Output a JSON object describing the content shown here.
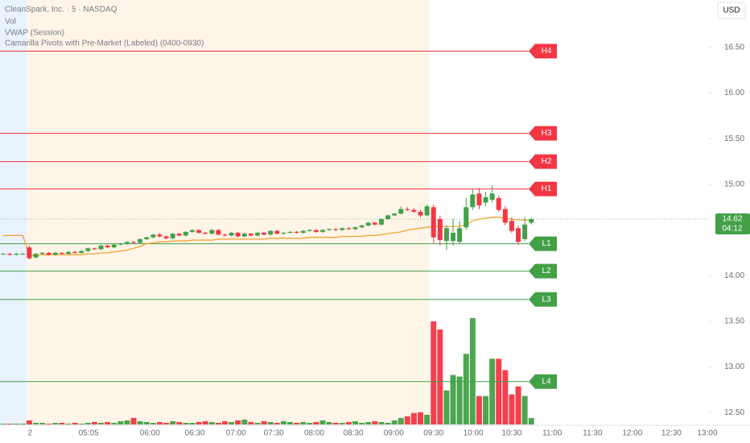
{
  "chart_data": {
    "type": "candlestick",
    "title": "CleanSpark, Inc. · 5 · NASDAQ",
    "legend": [
      "Vol",
      "VWAP (Session)",
      "Camarilla Pivots with Pre-Market (Labeled) (0400-0930)"
    ],
    "currency": "USD",
    "up_color": "#43a047",
    "down_color": "#f23645",
    "xlim": [
      0,
      108
    ],
    "xticks": [
      {
        "value": 4.1,
        "label": "2"
      },
      {
        "value": 13.1,
        "label": "05:05"
      },
      {
        "value": 22.5,
        "label": "06:00"
      },
      {
        "value": 29.4,
        "label": "06:30"
      },
      {
        "value": 35.7,
        "label": "07:00"
      },
      {
        "value": 41.5,
        "label": "07:30"
      },
      {
        "value": 47.7,
        "label": "08:00"
      },
      {
        "value": 53.7,
        "label": "08:30"
      },
      {
        "value": 59.9,
        "label": "09:00"
      },
      {
        "value": 66,
        "label": "09:30"
      },
      {
        "value": 72.1,
        "label": "10:00"
      },
      {
        "value": 78,
        "label": "10:30"
      },
      {
        "value": 84.2,
        "label": "11:00"
      },
      {
        "value": 90.4,
        "label": "11:30"
      },
      {
        "value": 96.5,
        "label": "12:00"
      },
      {
        "value": 102.5,
        "label": "12:30"
      },
      {
        "value": 108,
        "label": "13:00"
      }
    ],
    "ylim": [
      12.37,
      17.02
    ],
    "yticks": [
      {
        "value": 16.5,
        "label": "16.50"
      },
      {
        "value": 16,
        "label": "16.00"
      },
      {
        "value": 15.5,
        "label": "15.50"
      },
      {
        "value": 15,
        "label": "15.00"
      },
      {
        "value": 14,
        "label": "14.00"
      },
      {
        "value": 13.5,
        "label": "13.50"
      },
      {
        "value": 13,
        "label": "13.00"
      },
      {
        "value": 12.5,
        "label": "12.50"
      }
    ],
    "x": [
      0,
      1,
      2,
      3,
      4,
      5,
      6,
      7,
      8,
      9,
      10,
      11,
      12,
      13,
      14,
      15,
      16,
      17,
      18,
      19,
      20,
      21,
      22,
      23,
      24,
      25,
      26,
      27,
      28,
      29,
      30,
      31,
      32,
      33,
      34,
      35,
      36,
      37,
      38,
      39,
      40,
      41,
      42,
      43,
      44,
      45,
      46,
      47,
      48,
      49,
      50,
      51,
      52,
      53,
      54,
      55,
      56,
      57,
      58,
      59,
      60,
      61,
      62,
      63,
      64,
      65,
      66,
      67,
      68,
      69,
      70,
      71,
      72,
      73,
      74,
      75,
      76,
      77,
      78,
      79,
      80,
      81
    ],
    "candles": [
      [
        14.24,
        14.25,
        14.23,
        14.24
      ],
      [
        14.24,
        14.25,
        14.22,
        14.23
      ],
      [
        14.23,
        14.25,
        14.22,
        14.24
      ],
      [
        14.24,
        14.25,
        14.23,
        14.24
      ],
      [
        14.31,
        14.33,
        14.18,
        14.19
      ],
      [
        14.2,
        14.25,
        14.19,
        14.24
      ],
      [
        14.24,
        14.26,
        14.23,
        14.25
      ],
      [
        14.25,
        14.26,
        14.22,
        14.23
      ],
      [
        14.23,
        14.26,
        14.22,
        14.25
      ],
      [
        14.25,
        14.26,
        14.23,
        14.24
      ],
      [
        14.24,
        14.27,
        14.23,
        14.26
      ],
      [
        14.26,
        14.27,
        14.24,
        14.25
      ],
      [
        14.25,
        14.28,
        14.24,
        14.27
      ],
      [
        14.27,
        14.31,
        14.26,
        14.3
      ],
      [
        14.3,
        14.31,
        14.28,
        14.29
      ],
      [
        14.29,
        14.34,
        14.28,
        14.33
      ],
      [
        14.33,
        14.34,
        14.3,
        14.31
      ],
      [
        14.31,
        14.35,
        14.3,
        14.34
      ],
      [
        14.34,
        14.36,
        14.33,
        14.35
      ],
      [
        14.35,
        14.38,
        14.34,
        14.37
      ],
      [
        14.37,
        14.38,
        14.35,
        14.36
      ],
      [
        14.36,
        14.41,
        14.35,
        14.4
      ],
      [
        14.4,
        14.43,
        14.39,
        14.42
      ],
      [
        14.42,
        14.46,
        14.41,
        14.45
      ],
      [
        14.45,
        14.47,
        14.42,
        14.43
      ],
      [
        14.43,
        14.44,
        14.4,
        14.41
      ],
      [
        14.41,
        14.47,
        14.4,
        14.46
      ],
      [
        14.46,
        14.47,
        14.43,
        14.44
      ],
      [
        14.44,
        14.49,
        14.43,
        14.48
      ],
      [
        14.48,
        14.51,
        14.47,
        14.5
      ],
      [
        14.5,
        14.51,
        14.46,
        14.47
      ],
      [
        14.47,
        14.48,
        14.45,
        14.46
      ],
      [
        14.46,
        14.51,
        14.45,
        14.5
      ],
      [
        14.5,
        14.51,
        14.44,
        14.45
      ],
      [
        14.45,
        14.46,
        14.43,
        14.44
      ],
      [
        14.44,
        14.48,
        14.43,
        14.47
      ],
      [
        14.47,
        14.48,
        14.42,
        14.43
      ],
      [
        14.43,
        14.47,
        14.42,
        14.46
      ],
      [
        14.46,
        14.47,
        14.43,
        14.44
      ],
      [
        14.44,
        14.48,
        14.43,
        14.47
      ],
      [
        14.47,
        14.48,
        14.44,
        14.45
      ],
      [
        14.45,
        14.5,
        14.44,
        14.49
      ],
      [
        14.49,
        14.5,
        14.45,
        14.46
      ],
      [
        14.46,
        14.48,
        14.45,
        14.47
      ],
      [
        14.47,
        14.49,
        14.46,
        14.48
      ],
      [
        14.48,
        14.49,
        14.46,
        14.47
      ],
      [
        14.47,
        14.5,
        14.46,
        14.49
      ],
      [
        14.49,
        14.51,
        14.48,
        14.5
      ],
      [
        14.5,
        14.51,
        14.47,
        14.48
      ],
      [
        14.48,
        14.51,
        14.47,
        14.5
      ],
      [
        14.5,
        14.52,
        14.49,
        14.51
      ],
      [
        14.51,
        14.52,
        14.49,
        14.5
      ],
      [
        14.5,
        14.53,
        14.49,
        14.52
      ],
      [
        14.52,
        14.53,
        14.5,
        14.51
      ],
      [
        14.51,
        14.54,
        14.5,
        14.53
      ],
      [
        14.53,
        14.56,
        14.52,
        14.55
      ],
      [
        14.55,
        14.59,
        14.54,
        14.58
      ],
      [
        14.58,
        14.59,
        14.55,
        14.56
      ],
      [
        14.56,
        14.63,
        14.55,
        14.62
      ],
      [
        14.62,
        14.67,
        14.61,
        14.66
      ],
      [
        14.66,
        14.69,
        14.65,
        14.68
      ],
      [
        14.68,
        14.76,
        14.67,
        14.73
      ],
      [
        14.73,
        14.75,
        14.71,
        14.72
      ],
      [
        14.72,
        14.74,
        14.69,
        14.7
      ],
      [
        14.7,
        14.72,
        14.64,
        14.66
      ],
      [
        14.66,
        14.78,
        14.65,
        14.76
      ],
      [
        14.75,
        14.78,
        14.36,
        14.42
      ],
      [
        14.62,
        14.66,
        14.33,
        14.39
      ],
      [
        14.38,
        14.55,
        14.28,
        14.52
      ],
      [
        14.38,
        14.62,
        14.33,
        14.47
      ],
      [
        14.37,
        14.6,
        14.35,
        14.52
      ],
      [
        14.53,
        14.85,
        14.5,
        14.75
      ],
      [
        14.75,
        14.95,
        14.72,
        14.89
      ],
      [
        14.9,
        14.96,
        14.73,
        14.77
      ],
      [
        14.8,
        14.92,
        14.76,
        14.86
      ],
      [
        14.83,
        14.99,
        14.8,
        14.9
      ],
      [
        14.85,
        14.88,
        14.7,
        14.72
      ],
      [
        14.73,
        14.76,
        14.55,
        14.58
      ],
      [
        14.6,
        14.64,
        14.47,
        14.49
      ],
      [
        14.52,
        14.55,
        14.34,
        14.37
      ],
      [
        14.4,
        14.64,
        14.38,
        14.56
      ],
      [
        14.58,
        14.64,
        14.56,
        14.62
      ]
    ],
    "vwap": {
      "name": "VWAP (Session)",
      "color": "#f5a030",
      "values": [
        14.44,
        14.44,
        14.44,
        14.44,
        14.22,
        14.22,
        14.23,
        14.23,
        14.23,
        14.23,
        14.23,
        14.23,
        14.23,
        14.24,
        14.24,
        14.25,
        14.25,
        14.26,
        14.27,
        14.28,
        14.3,
        14.32,
        14.35,
        14.36,
        14.37,
        14.37,
        14.38,
        14.38,
        14.38,
        14.39,
        14.39,
        14.39,
        14.39,
        14.4,
        14.4,
        14.4,
        14.4,
        14.4,
        14.4,
        14.4,
        14.4,
        14.41,
        14.41,
        14.41,
        14.41,
        14.41,
        14.41,
        14.42,
        14.42,
        14.42,
        14.42,
        14.42,
        14.43,
        14.43,
        14.43,
        14.43,
        14.44,
        14.44,
        14.45,
        14.46,
        14.47,
        14.48,
        14.5,
        14.51,
        14.52,
        14.53,
        14.54,
        14.54,
        14.54,
        14.54,
        14.54,
        14.56,
        14.6,
        14.62,
        14.63,
        14.64,
        14.64,
        14.63,
        14.62,
        14.61,
        14.61,
        14.61
      ]
    },
    "volume": {
      "name": "Vol",
      "values": [
        1,
        1,
        1,
        1,
        5,
        2,
        2,
        1,
        2,
        2,
        1,
        2,
        1,
        2,
        3,
        2,
        3,
        2,
        4,
        5,
        8,
        4,
        3,
        2,
        3,
        2,
        4,
        3,
        2,
        2,
        3,
        4,
        3,
        2,
        4,
        3,
        5,
        6,
        3,
        2,
        4,
        3,
        2,
        4,
        3,
        2,
        3,
        2,
        3,
        5,
        3,
        2,
        2,
        3,
        4,
        2,
        3,
        4,
        3,
        2,
        5,
        8,
        10,
        14,
        15,
        12,
        127,
        117,
        42,
        61,
        59,
        87,
        131,
        35,
        35,
        81,
        81,
        67,
        37,
        47,
        35,
        8
      ]
    },
    "levels": [
      {
        "label": "H4",
        "value": 16.46,
        "color": "#f23645"
      },
      {
        "label": "H3",
        "value": 15.56,
        "color": "#f23645"
      },
      {
        "label": "H2",
        "value": 15.25,
        "color": "#f23645"
      },
      {
        "label": "H1",
        "value": 14.95,
        "color": "#f23645"
      },
      {
        "label": "L1",
        "value": 14.35,
        "color": "#43a047"
      },
      {
        "label": "L2",
        "value": 14.05,
        "color": "#43a047"
      },
      {
        "label": "L3",
        "value": 13.74,
        "color": "#43a047"
      },
      {
        "label": "L4",
        "value": 12.84,
        "color": "#43a047"
      }
    ],
    "last_price": {
      "value": 14.62,
      "label": "14.62",
      "countdown": "04:12"
    }
  }
}
